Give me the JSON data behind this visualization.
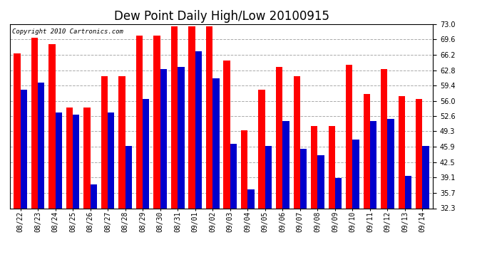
{
  "title": "Dew Point Daily High/Low 20100915",
  "copyright": "Copyright 2010 Cartronics.com",
  "dates": [
    "08/22",
    "08/23",
    "08/24",
    "08/25",
    "08/26",
    "08/27",
    "08/28",
    "08/29",
    "08/30",
    "08/31",
    "09/01",
    "09/02",
    "09/03",
    "09/04",
    "09/05",
    "09/06",
    "09/07",
    "09/08",
    "09/09",
    "09/10",
    "09/11",
    "09/12",
    "09/13",
    "09/14"
  ],
  "highs": [
    66.5,
    70.0,
    68.5,
    54.5,
    54.5,
    61.5,
    61.5,
    70.5,
    70.5,
    72.5,
    72.5,
    72.5,
    65.0,
    49.5,
    58.5,
    63.5,
    61.5,
    50.5,
    50.5,
    64.0,
    57.5,
    63.0,
    57.0,
    56.5
  ],
  "lows": [
    58.5,
    60.0,
    53.5,
    53.0,
    37.5,
    53.5,
    46.0,
    56.5,
    63.0,
    63.5,
    67.0,
    61.0,
    46.5,
    36.5,
    46.0,
    51.5,
    45.5,
    44.0,
    39.0,
    47.5,
    51.5,
    52.0,
    39.5,
    46.0
  ],
  "high_color": "#ff0000",
  "low_color": "#0000cc",
  "bg_color": "#ffffff",
  "grid_color": "#aaaaaa",
  "ylim_min": 32.3,
  "ylim_max": 73.0,
  "yticks": [
    32.3,
    35.7,
    39.1,
    42.5,
    45.9,
    49.3,
    52.6,
    56.0,
    59.4,
    62.8,
    66.2,
    69.6,
    73.0
  ],
  "bar_width": 0.38,
  "title_fontsize": 12,
  "tick_fontsize": 7,
  "copyright_fontsize": 6.5
}
